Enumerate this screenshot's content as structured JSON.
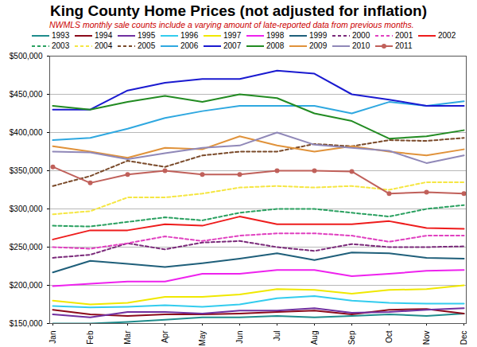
{
  "chart_data": {
    "type": "line",
    "title": "King County Home Prices (not adjusted for inflation)",
    "subtitle": "NWMLS monthly sale counts include a varying amount of late-reported data from previous months.",
    "categories": [
      "Jan",
      "Feb",
      "Mar",
      "Apr",
      "May",
      "Jun",
      "Jul",
      "Aug",
      "Sep",
      "Oct",
      "Nov",
      "Dec"
    ],
    "ylim": [
      150000,
      500000
    ],
    "yticks": [
      {
        "value": 150000,
        "label": "$150,000"
      },
      {
        "value": 200000,
        "label": "$200,000"
      },
      {
        "value": 250000,
        "label": "$250,000"
      },
      {
        "value": 300000,
        "label": "$300,000"
      },
      {
        "value": 350000,
        "label": "$350,000"
      },
      {
        "value": 400000,
        "label": "$400,000"
      },
      {
        "value": 450000,
        "label": "$450,000"
      },
      {
        "value": 500000,
        "label": "$500,000"
      }
    ],
    "grid": true,
    "legend": "top",
    "series": [
      {
        "name": "1993",
        "color": "#1f8c8c",
        "line_style": "solid",
        "values": [
          150000,
          150000,
          152000,
          155000,
          158000,
          158000,
          160000,
          158000,
          160000,
          162000,
          160000,
          163000
        ]
      },
      {
        "name": "1994",
        "color": "#8b0a1a",
        "line_style": "solid",
        "values": [
          168000,
          162000,
          160000,
          162000,
          162000,
          163000,
          165000,
          167000,
          162000,
          168000,
          169000,
          163000
        ]
      },
      {
        "name": "1995",
        "color": "#7030a0",
        "line_style": "solid",
        "values": [
          162000,
          158000,
          165000,
          165000,
          163000,
          167000,
          167000,
          170000,
          164000,
          165000,
          168000,
          170000
        ]
      },
      {
        "name": "1996",
        "color": "#33ccee",
        "line_style": "solid",
        "values": [
          173000,
          171000,
          172000,
          174000,
          172000,
          175000,
          183000,
          186000,
          180000,
          177000,
          176000,
          176000
        ]
      },
      {
        "name": "1997",
        "color": "#f0e800",
        "line_style": "solid",
        "values": [
          180000,
          175000,
          177000,
          185000,
          185000,
          188000,
          195000,
          194000,
          189000,
          194000,
          195000,
          200000
        ]
      },
      {
        "name": "1998",
        "color": "#ee22ee",
        "line_style": "solid",
        "values": [
          199000,
          202000,
          205000,
          205000,
          215000,
          215000,
          220000,
          220000,
          212000,
          215000,
          219000,
          220000
        ]
      },
      {
        "name": "1999",
        "color": "#1f5f7a",
        "line_style": "solid",
        "values": [
          217000,
          232000,
          228000,
          224000,
          229000,
          235000,
          242000,
          233000,
          243000,
          242000,
          236000,
          235000
        ]
      },
      {
        "name": "2000",
        "color": "#7a2a7a",
        "line_style": "dashed",
        "values": [
          236000,
          240000,
          255000,
          247000,
          256000,
          258000,
          250000,
          245000,
          254000,
          250000,
          250000,
          251000
        ]
      },
      {
        "name": "2001",
        "color": "#e040c0",
        "line_style": "dashed",
        "values": [
          250000,
          248000,
          255000,
          264000,
          258000,
          265000,
          268000,
          268000,
          265000,
          257000,
          265000,
          265000
        ]
      },
      {
        "name": "2002",
        "color": "#ee1c1c",
        "line_style": "solid",
        "values": [
          260000,
          272000,
          272000,
          280000,
          278000,
          290000,
          280000,
          280000,
          280000,
          284000,
          275000,
          274000
        ]
      },
      {
        "name": "2003",
        "color": "#2aa060",
        "line_style": "dashed",
        "values": [
          278000,
          277000,
          283000,
          289000,
          285000,
          295000,
          300000,
          300000,
          295000,
          290000,
          300000,
          305000
        ]
      },
      {
        "name": "2004",
        "color": "#f5e642",
        "line_style": "dashed",
        "values": [
          293000,
          297000,
          315000,
          315000,
          320000,
          328000,
          330000,
          328000,
          330000,
          325000,
          335000,
          335000
        ]
      },
      {
        "name": "2005",
        "color": "#7a4a2a",
        "line_style": "dashed",
        "values": [
          330000,
          343000,
          363000,
          355000,
          370000,
          375000,
          375000,
          385000,
          382000,
          390000,
          389000,
          393000
        ]
      },
      {
        "name": "2006",
        "color": "#2fa8e0",
        "line_style": "solid",
        "values": [
          390000,
          393000,
          405000,
          419000,
          428000,
          435000,
          435000,
          435000,
          425000,
          440000,
          435000,
          441000
        ]
      },
      {
        "name": "2007",
        "color": "#1a1ad0",
        "line_style": "solid",
        "values": [
          430000,
          430000,
          455000,
          465000,
          470000,
          470000,
          481000,
          477000,
          450000,
          443000,
          435000,
          435000
        ]
      },
      {
        "name": "2008",
        "color": "#228b22",
        "line_style": "solid",
        "values": [
          435000,
          430000,
          440000,
          448000,
          440000,
          450000,
          445000,
          425000,
          415000,
          392000,
          395000,
          403000
        ]
      },
      {
        "name": "2009",
        "color": "#e0923a",
        "line_style": "solid",
        "values": [
          382000,
          375000,
          367000,
          380000,
          378000,
          395000,
          383000,
          375000,
          382000,
          375000,
          370000,
          378000
        ]
      },
      {
        "name": "2010",
        "color": "#9088b8",
        "line_style": "solid",
        "values": [
          375000,
          374000,
          365000,
          373000,
          380000,
          383000,
          400000,
          384000,
          380000,
          376000,
          360000,
          370000
        ]
      },
      {
        "name": "2011",
        "color": "#c0605a",
        "line_style": "solid",
        "marker": "circle",
        "values": [
          355000,
          334000,
          345000,
          350000,
          345000,
          345000,
          350000,
          350000,
          349000,
          320000,
          322000,
          320000
        ]
      }
    ]
  }
}
